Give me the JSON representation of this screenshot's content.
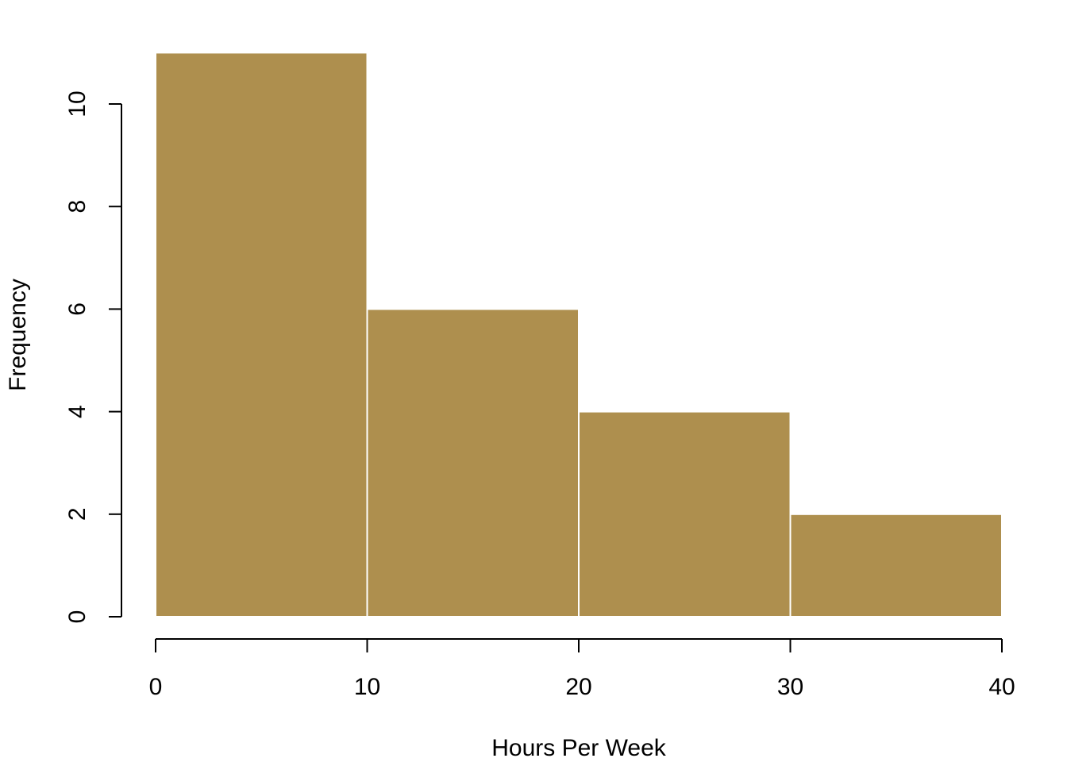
{
  "chart_data": {
    "type": "bar",
    "subtype": "histogram",
    "bins": [
      {
        "x0": 0,
        "x1": 10,
        "value": 11
      },
      {
        "x0": 10,
        "x1": 20,
        "value": 6
      },
      {
        "x0": 20,
        "x1": 30,
        "value": 4
      },
      {
        "x0": 30,
        "x1": 40,
        "value": 2
      }
    ],
    "xlabel": "Hours Per Week",
    "ylabel": "Frequency",
    "xlim": [
      0,
      40
    ],
    "ylim": [
      0,
      11
    ],
    "x_ticks": [
      0,
      10,
      20,
      30,
      40
    ],
    "y_ticks": [
      0,
      2,
      4,
      6,
      8,
      10
    ],
    "grid": false,
    "colors": {
      "bar_fill": "#ae8f4e",
      "bar_border": "#ffffff",
      "axis": "#000000"
    }
  }
}
